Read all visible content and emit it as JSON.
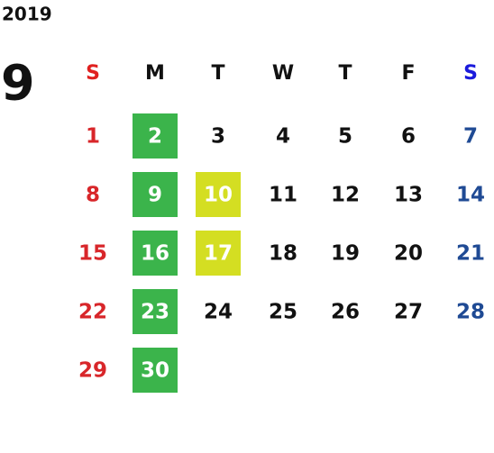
{
  "year": "2019",
  "month": "9",
  "weekdays": [
    "S",
    "M",
    "T",
    "W",
    "T",
    "F",
    "S"
  ],
  "weekday_colors": [
    "#e0201f",
    "#111111",
    "#111111",
    "#111111",
    "#111111",
    "#111111",
    "#1a1adc"
  ],
  "date_colors": [
    "#d8262a",
    "#111111",
    "#111111",
    "#111111",
    "#111111",
    "#111111",
    "#1f4a94"
  ],
  "highlight_text_color": "#ffffff",
  "weeks": [
    [
      {
        "day": "1"
      },
      {
        "day": "2",
        "fill": "#3bb44b"
      },
      {
        "day": "3"
      },
      {
        "day": "4"
      },
      {
        "day": "5"
      },
      {
        "day": "6"
      },
      {
        "day": "7"
      }
    ],
    [
      {
        "day": "8"
      },
      {
        "day": "9",
        "fill": "#3bb44b"
      },
      {
        "day": "10",
        "fill": "#d4de22"
      },
      {
        "day": "11"
      },
      {
        "day": "12"
      },
      {
        "day": "13"
      },
      {
        "day": "14"
      }
    ],
    [
      {
        "day": "15"
      },
      {
        "day": "16",
        "fill": "#3bb44b"
      },
      {
        "day": "17",
        "fill": "#d4de22"
      },
      {
        "day": "18"
      },
      {
        "day": "19"
      },
      {
        "day": "20"
      },
      {
        "day": "21"
      }
    ],
    [
      {
        "day": "22"
      },
      {
        "day": "23",
        "fill": "#3bb44b"
      },
      {
        "day": "24"
      },
      {
        "day": "25"
      },
      {
        "day": "26"
      },
      {
        "day": "27"
      },
      {
        "day": "28"
      }
    ],
    [
      {
        "day": "29"
      },
      {
        "day": "30",
        "fill": "#3bb44b"
      }
    ]
  ]
}
